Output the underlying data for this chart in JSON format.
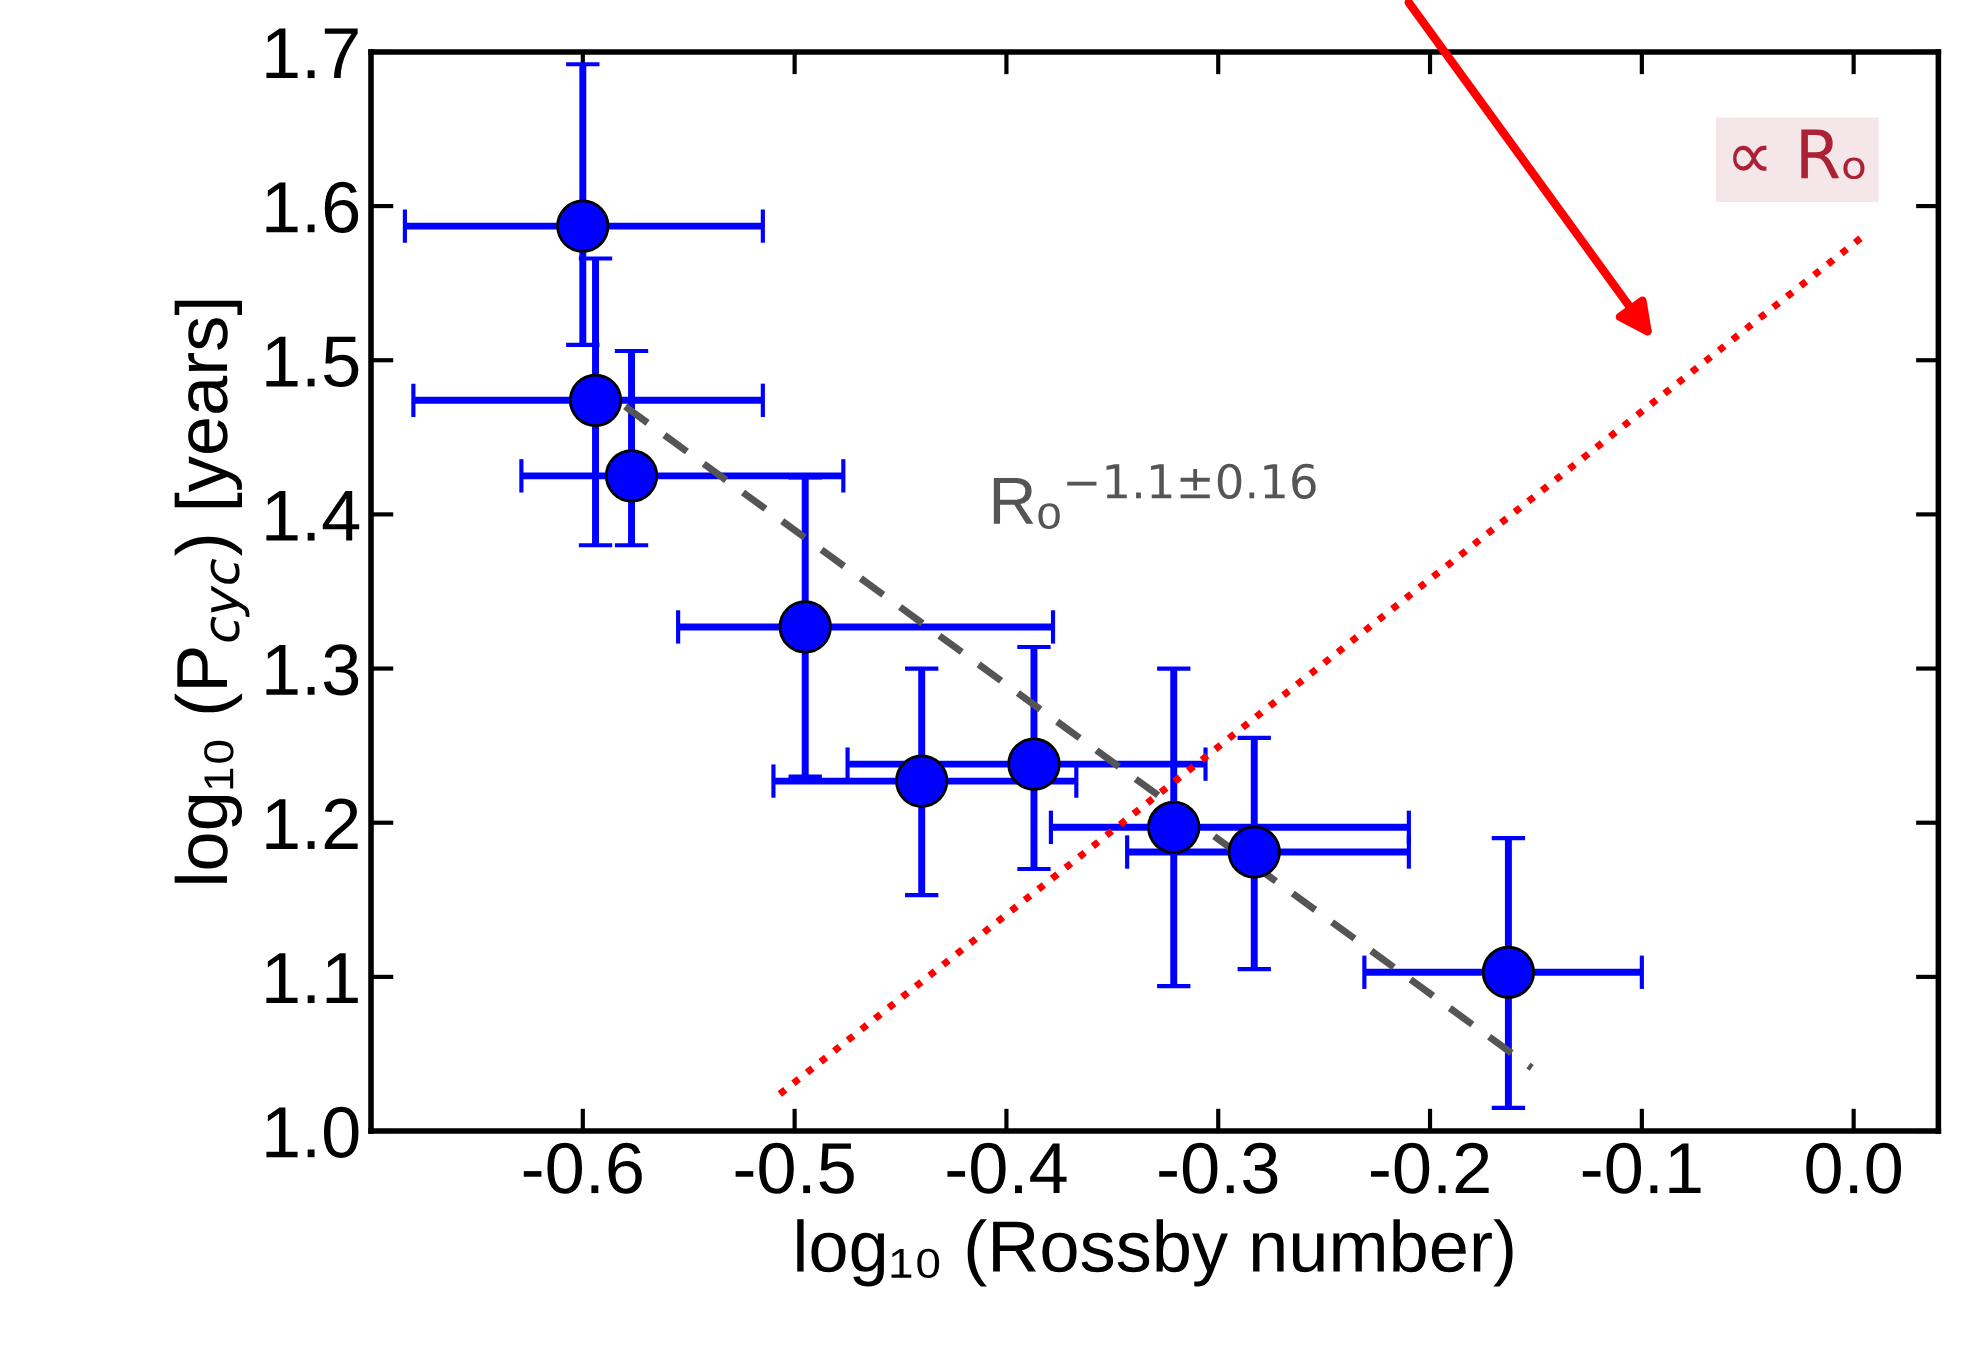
{
  "chart_data": {
    "type": "scatter",
    "xlabel": "log₁₀ (Rossby number)",
    "ylabel": "log₁₀ (P$_{cyc}$) [years]",
    "xlim": [
      -0.7,
      0.04
    ],
    "ylim": [
      1.0,
      1.7
    ],
    "xticks": [
      {
        "value": -0.6,
        "label": "-0.6"
      },
      {
        "value": -0.5,
        "label": "-0.5"
      },
      {
        "value": -0.4,
        "label": "-0.4"
      },
      {
        "value": -0.3,
        "label": "-0.3"
      },
      {
        "value": -0.2,
        "label": "-0.2"
      },
      {
        "value": -0.1,
        "label": "-0.1"
      },
      {
        "value": 0.0,
        "label": "0.0"
      }
    ],
    "yticks": [
      {
        "value": 1.0,
        "label": "1.0"
      },
      {
        "value": 1.1,
        "label": "1.1"
      },
      {
        "value": 1.2,
        "label": "1.2"
      },
      {
        "value": 1.3,
        "label": "1.3"
      },
      {
        "value": 1.4,
        "label": "1.4"
      },
      {
        "value": 1.5,
        "label": "1.5"
      },
      {
        "value": 1.6,
        "label": "1.6"
      },
      {
        "value": 1.7,
        "label": "1.7"
      }
    ],
    "grid": false,
    "legend": false,
    "series": [
      {
        "color": "#0000ff",
        "marker": "circle",
        "x": [
          -0.6,
          -0.594,
          -0.577,
          -0.495,
          -0.44,
          -0.387,
          -0.321,
          -0.283,
          -0.163
        ],
        "values": [
          1.587,
          1.474,
          1.425,
          1.327,
          1.227,
          1.238,
          1.197,
          1.181,
          1.103
        ],
        "errors": [
          [
            1.51,
            1.692
          ],
          [
            1.38,
            1.566
          ],
          [
            1.38,
            1.506
          ],
          [
            1.23,
            1.424
          ],
          [
            1.153,
            1.3
          ],
          [
            1.17,
            1.314
          ],
          [
            1.094,
            1.3
          ],
          [
            1.105,
            1.255
          ],
          [
            1.015,
            1.19
          ]
        ],
        "xerrors": [
          [
            -0.684,
            -0.515
          ],
          [
            -0.68,
            -0.515
          ],
          [
            -0.629,
            -0.477
          ],
          [
            -0.555,
            -0.378
          ],
          [
            -0.51,
            -0.367
          ],
          [
            -0.475,
            -0.306
          ],
          [
            -0.379,
            -0.21
          ],
          [
            -0.343,
            -0.21
          ],
          [
            -0.231,
            -0.1
          ]
        ]
      },
      {
        "type": "line",
        "color": "#555555",
        "line_style": "dashed",
        "x": [
          -0.58,
          -0.152
        ],
        "values": [
          1.47,
          1.041
        ]
      },
      {
        "type": "line",
        "color": "#ff0000",
        "line_style": "dotted",
        "x": [
          -0.507,
          0.005
        ],
        "values": [
          1.024,
          1.581
        ]
      }
    ],
    "annotations": [
      "Rₒ$^{−1.1±0.16}$",
      "∝ Rₒ"
    ]
  }
}
